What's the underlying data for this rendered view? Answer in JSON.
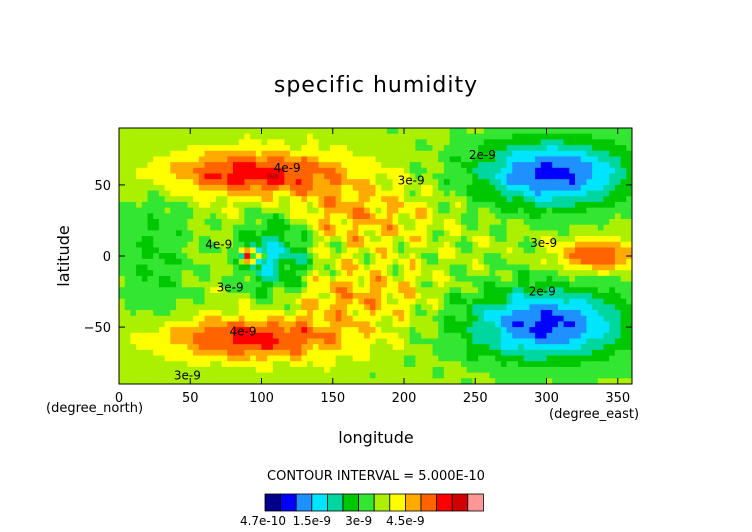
{
  "chart_data": {
    "type": "heatmap",
    "title": "specific humidity",
    "xlabel": "longitude",
    "ylabel": "latitude",
    "x_unit": "(degree_east)",
    "y_unit": "(degree_north)",
    "xlim": [
      0,
      360
    ],
    "ylim": [
      -90,
      90
    ],
    "x_ticks": [
      "0",
      "50",
      "100",
      "150",
      "200",
      "250",
      "300",
      "350"
    ],
    "y_ticks": [
      "50",
      "0",
      "−50"
    ],
    "contour_interval_label": "CONTOUR INTERVAL = 5.000E-10",
    "contour_labels": [
      {
        "text": "2e-9",
        "x": 255,
        "y": 71
      },
      {
        "text": "4e-9",
        "x": 118,
        "y": 62
      },
      {
        "text": "3e-9",
        "x": 205,
        "y": 53
      },
      {
        "text": "4e-9",
        "x": 70,
        "y": 8
      },
      {
        "text": "3e-9",
        "x": 298,
        "y": 9
      },
      {
        "text": "3e-9",
        "x": 78,
        "y": -22
      },
      {
        "text": "4e-9",
        "x": 87,
        "y": -53
      },
      {
        "text": "2e-9",
        "x": 297,
        "y": -25
      },
      {
        "text": "3e-9",
        "x": 48,
        "y": -84
      }
    ],
    "colorbar": {
      "tick_labels": [
        "4.7e-10",
        "1.5e-9",
        "3e-9",
        "4.5e-9"
      ],
      "colors": [
        "#00008b",
        "#0000ff",
        "#1e90ff",
        "#00e5ff",
        "#00d7a0",
        "#00c800",
        "#32e632",
        "#aaf000",
        "#ffff00",
        "#ffaa00",
        "#ff6400",
        "#ff0000",
        "#d20000",
        "#ff9696"
      ]
    },
    "grid": false,
    "legend": "colorbar-bottom"
  }
}
